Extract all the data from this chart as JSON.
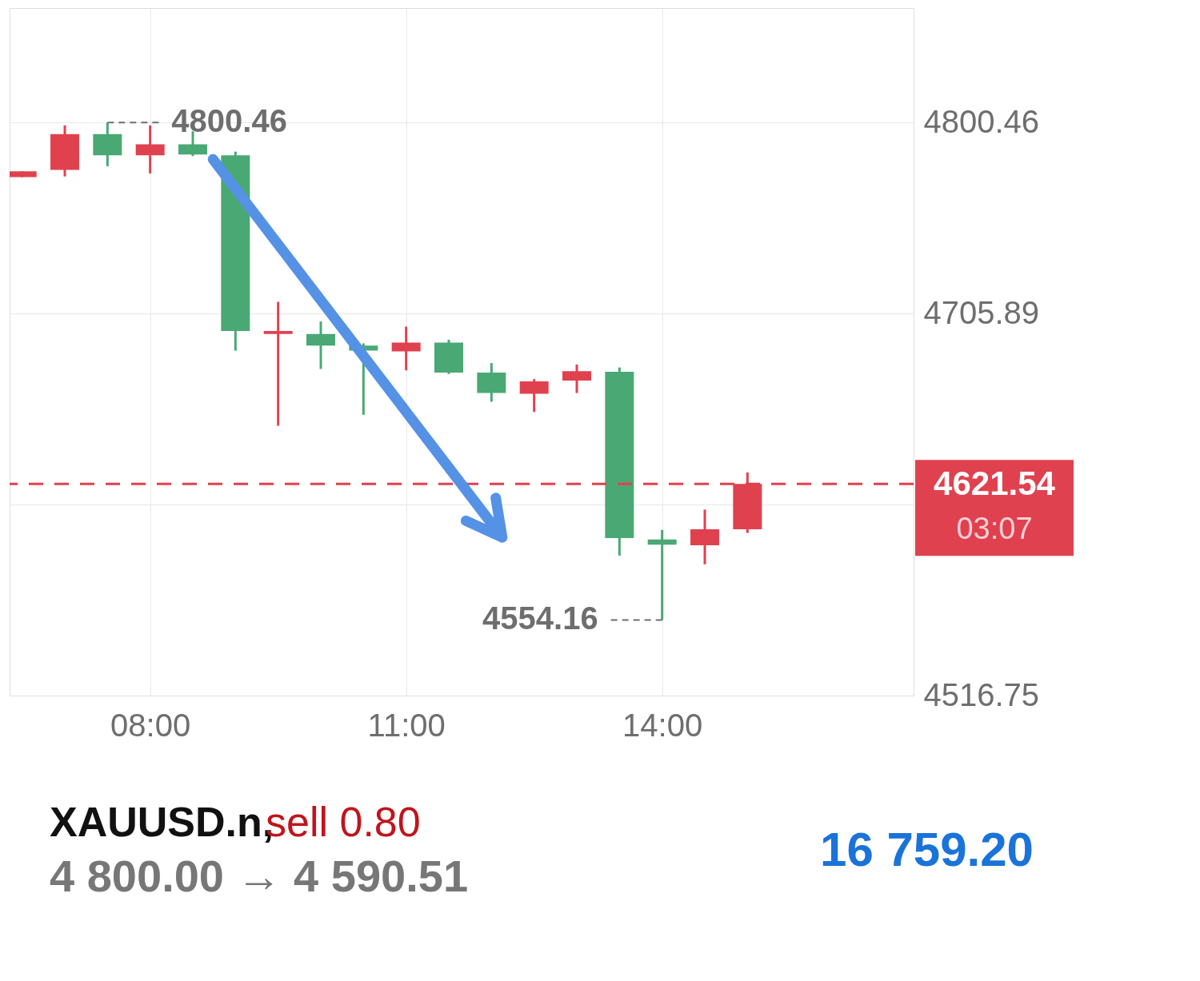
{
  "chart_data": {
    "type": "candlestick",
    "x": [
      6.5,
      7.0,
      7.5,
      8.0,
      8.5,
      9.0,
      9.5,
      10.0,
      10.5,
      11.0,
      11.5,
      12.0,
      12.5,
      13.0,
      13.5,
      14.0,
      14.5,
      15.0
    ],
    "ohlc": [
      [
        4773.39,
        4776.28,
        4773.39,
        4776.28
      ],
      [
        4777.0,
        4799.02,
        4773.75,
        4794.69
      ],
      [
        4794.69,
        4800.46,
        4778.8,
        4784.22
      ],
      [
        4784.22,
        4799.02,
        4775.2,
        4789.63
      ],
      [
        4789.63,
        4796.13,
        4783.86,
        4784.58
      ],
      [
        4784.22,
        4786.02,
        4687.49,
        4697.23
      ],
      [
        4695.79,
        4711.67,
        4650.31,
        4697.23
      ],
      [
        4695.79,
        4701.93,
        4678.46,
        4690.01
      ],
      [
        4690.01,
        4691.1,
        4655.73,
        4687.49
      ],
      [
        4687.13,
        4699.4,
        4677.74,
        4691.46
      ],
      [
        4691.46,
        4692.9,
        4675.94,
        4676.66
      ],
      [
        4676.66,
        4681.35,
        4662.22,
        4666.55
      ],
      [
        4666.19,
        4673.41,
        4657.17,
        4672.33
      ],
      [
        4672.69,
        4680.63,
        4666.55,
        4677.38
      ],
      [
        4677.02,
        4679.19,
        4586.06,
        4594.73
      ],
      [
        4594.01,
        4598.77,
        4554.16,
        4591.48
      ],
      [
        4591.12,
        4608.8,
        4581.73,
        4599.06
      ],
      [
        4599.06,
        4627.2,
        4597.26,
        4621.54
      ]
    ],
    "colors": [
      "#e0414f",
      "#e0414f",
      "#4aa874",
      "#e0414f",
      "#4aa874",
      "#4aa874",
      "#e0414f",
      "#4aa874",
      "#4aa874",
      "#e0414f",
      "#4aa874",
      "#4aa874",
      "#e0414f",
      "#e0414f",
      "#4aa874",
      "#4aa874",
      "#e0414f",
      "#e0414f"
    ],
    "xlim": [
      6.4,
      16.9
    ],
    "xticks": [
      {
        "value": 8,
        "label": "08:00"
      },
      {
        "value": 11,
        "label": "11:00"
      },
      {
        "value": 14,
        "label": "14:00"
      }
    ],
    "ylim": [
      4516.75,
      4857.13
    ],
    "yticks": [
      4516.75,
      {
        "value": 4611.32,
        "label": null
      },
      4705.89,
      4800.46
    ],
    "grid": true,
    "ref_lines": [
      {
        "axis": "y",
        "value": 4621.54,
        "label": "4621.54",
        "color": "#e0414f",
        "line_style": "dashed"
      }
    ],
    "annotations": [
      {
        "text": "4800.46",
        "x": 7.5,
        "y": 4800.46
      },
      {
        "text": "4554.16",
        "x": 14.0,
        "y": 4554.16
      },
      "03:07",
      "XAUUSD.n,",
      "sell 0.80",
      "4 800.00 → 4 590.51",
      "16 759.20"
    ]
  }
}
